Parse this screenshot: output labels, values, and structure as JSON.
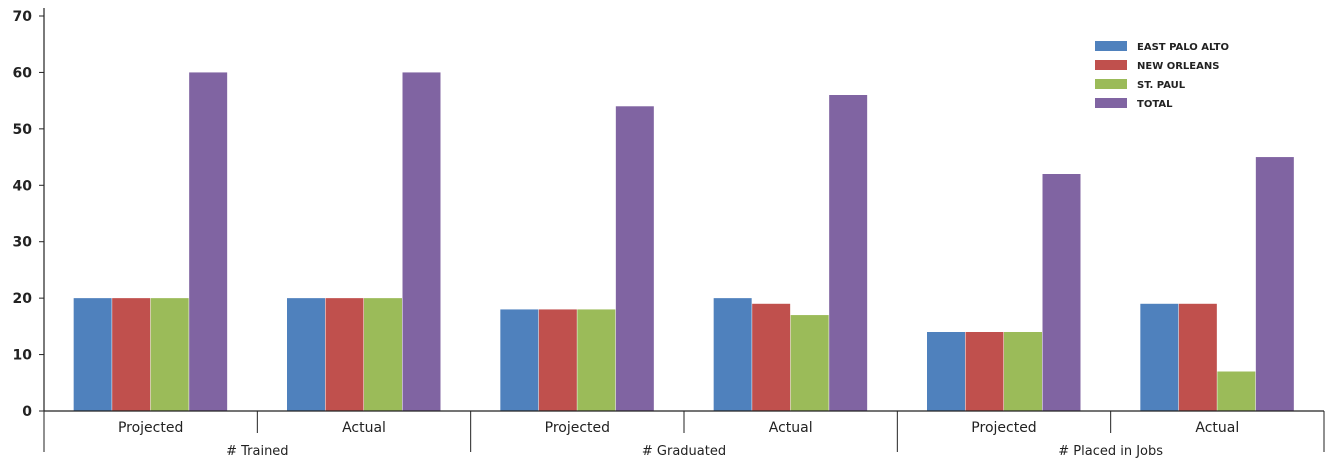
{
  "chart_data": {
    "type": "bar",
    "title": "",
    "xlabel": "",
    "ylabel": "",
    "ylim": [
      0,
      70
    ],
    "yticks": [
      0,
      10,
      20,
      30,
      40,
      50,
      60,
      70
    ],
    "grid": false,
    "legend_position": "top-right",
    "groups": [
      "# Trained",
      "# Graduated",
      "# Placed in Jobs"
    ],
    "categories": [
      "Projected",
      "Actual",
      "Projected",
      "Actual",
      "Projected",
      "Actual"
    ],
    "series": [
      {
        "name": "EAST PALO ALTO",
        "color": "#4f81bd",
        "values": [
          20,
          20,
          18,
          20,
          14,
          19
        ]
      },
      {
        "name": "NEW ORLEANS",
        "color": "#c0504d",
        "values": [
          20,
          20,
          18,
          19,
          14,
          19
        ]
      },
      {
        "name": "ST. PAUL",
        "color": "#9bbb59",
        "values": [
          20,
          20,
          18,
          17,
          14,
          7
        ]
      },
      {
        "name": "TOTAL",
        "color": "#8064a2",
        "values": [
          60,
          60,
          54,
          56,
          42,
          45
        ]
      }
    ]
  }
}
